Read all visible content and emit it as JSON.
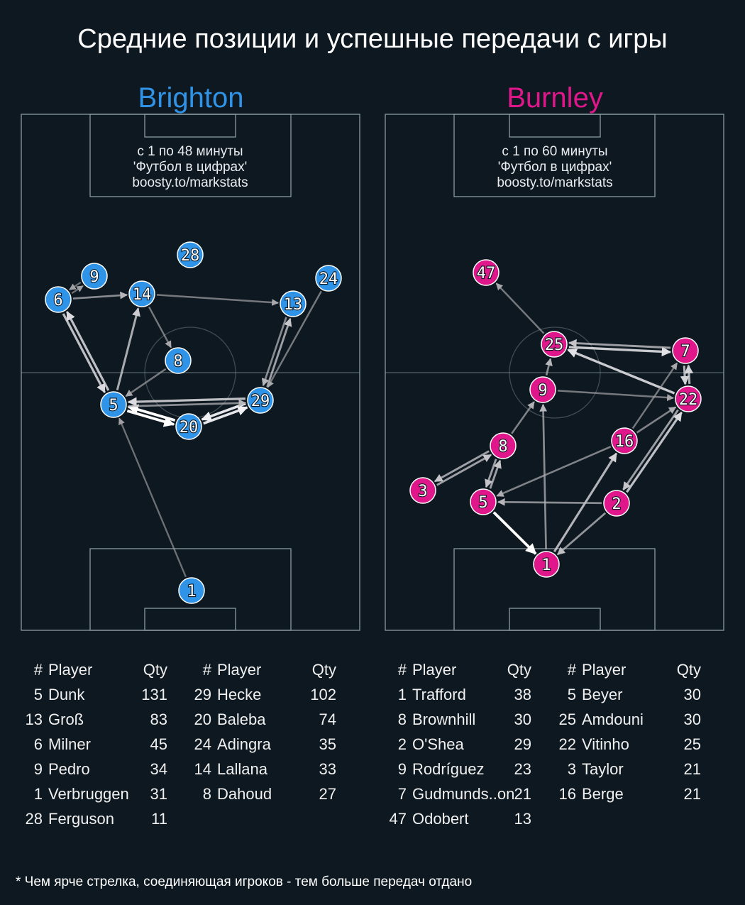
{
  "title": "Средние позиции и успешные передачи с игры",
  "footnote": "* Чем ярче стрелка, соединяющая игроков - тем больше передач отдано",
  "colors": {
    "background": "#0e1820",
    "brighton": "#2f93e8",
    "burnley": "#e0178b",
    "pitch_lines": "#8a9aa2"
  },
  "teams": [
    {
      "name": "Brighton",
      "info": [
        "с 1 по 48 минуты",
        "'Футбол в цифрах'",
        "boosty.to/markstats"
      ],
      "players": [
        "1",
        "5",
        "20",
        "29",
        "8",
        "14",
        "6",
        "9",
        "28",
        "13",
        "24"
      ],
      "passes": [
        {
          "from": "5",
          "to": "20",
          "strength": 1.0
        },
        {
          "from": "20",
          "to": "5",
          "strength": 1.0
        },
        {
          "from": "20",
          "to": "29",
          "strength": 0.9
        },
        {
          "from": "29",
          "to": "20",
          "strength": 0.9
        },
        {
          "from": "29",
          "to": "5",
          "strength": 0.75
        },
        {
          "from": "5",
          "to": "29",
          "strength": 0.5
        },
        {
          "from": "5",
          "to": "6",
          "strength": 0.75
        },
        {
          "from": "6",
          "to": "5",
          "strength": 0.75
        },
        {
          "from": "5",
          "to": "14",
          "strength": 0.65
        },
        {
          "from": "29",
          "to": "13",
          "strength": 0.6
        },
        {
          "from": "13",
          "to": "29",
          "strength": 0.5
        },
        {
          "from": "24",
          "to": "29",
          "strength": 0.4
        },
        {
          "from": "6",
          "to": "14",
          "strength": 0.5
        },
        {
          "from": "14",
          "to": "13",
          "strength": 0.4
        },
        {
          "from": "14",
          "to": "8",
          "strength": 0.4
        },
        {
          "from": "8",
          "to": "5",
          "strength": 0.4
        },
        {
          "from": "6",
          "to": "9",
          "strength": 0.35
        },
        {
          "from": "9",
          "to": "6",
          "strength": 0.35
        },
        {
          "from": "1",
          "to": "5",
          "strength": 0.35
        }
      ],
      "table_columns": [
        {
          "header": {
            "num": "#",
            "player": "Player",
            "qty": "Qty"
          },
          "rows": [
            {
              "num": "5",
              "player": "Dunk",
              "qty": "131"
            },
            {
              "num": "13",
              "player": "Groß",
              "qty": "83"
            },
            {
              "num": "6",
              "player": "Milner",
              "qty": "45"
            },
            {
              "num": "9",
              "player": "Pedro",
              "qty": "34"
            },
            {
              "num": "1",
              "player": "Verbruggen",
              "qty": "31"
            },
            {
              "num": "28",
              "player": "Ferguson",
              "qty": "11"
            }
          ]
        },
        {
          "header": {
            "num": "#",
            "player": "Player",
            "qty": "Qty"
          },
          "rows": [
            {
              "num": "29",
              "player": "Hecke",
              "qty": "102"
            },
            {
              "num": "20",
              "player": "Baleba",
              "qty": "74"
            },
            {
              "num": "24",
              "player": "Adingra",
              "qty": "35"
            },
            {
              "num": "14",
              "player": "Lallana",
              "qty": "33"
            },
            {
              "num": "8",
              "player": "Dahoud",
              "qty": "27"
            }
          ]
        }
      ]
    },
    {
      "name": "Burnley",
      "info": [
        "с 1 по 60 минуты",
        "'Футбол в цифрах'",
        "boosty.to/markstats"
      ],
      "players": [
        "1",
        "5",
        "2",
        "3",
        "8",
        "16",
        "9",
        "22",
        "25",
        "7",
        "47"
      ],
      "passes": [
        {
          "from": "5",
          "to": "1",
          "strength": 1.0
        },
        {
          "from": "22",
          "to": "25",
          "strength": 0.8
        },
        {
          "from": "25",
          "to": "7",
          "strength": 0.8
        },
        {
          "from": "7",
          "to": "25",
          "strength": 0.6
        },
        {
          "from": "2",
          "to": "22",
          "strength": 0.75
        },
        {
          "from": "22",
          "to": "2",
          "strength": 0.6
        },
        {
          "from": "22",
          "to": "7",
          "strength": 0.7
        },
        {
          "from": "7",
          "to": "22",
          "strength": 0.7
        },
        {
          "from": "1",
          "to": "16",
          "strength": 0.7
        },
        {
          "from": "1",
          "to": "9",
          "strength": 0.5
        },
        {
          "from": "2",
          "to": "1",
          "strength": 0.55
        },
        {
          "from": "8",
          "to": "3",
          "strength": 0.6
        },
        {
          "from": "3",
          "to": "8",
          "strength": 0.6
        },
        {
          "from": "8",
          "to": "5",
          "strength": 0.6
        },
        {
          "from": "5",
          "to": "8",
          "strength": 0.6
        },
        {
          "from": "2",
          "to": "5",
          "strength": 0.5
        },
        {
          "from": "16",
          "to": "5",
          "strength": 0.45
        },
        {
          "from": "16",
          "to": "22",
          "strength": 0.45
        },
        {
          "from": "16",
          "to": "7",
          "strength": 0.4
        },
        {
          "from": "9",
          "to": "25",
          "strength": 0.5
        },
        {
          "from": "8",
          "to": "9",
          "strength": 0.45
        },
        {
          "from": "9",
          "to": "22",
          "strength": 0.4
        },
        {
          "from": "25",
          "to": "47",
          "strength": 0.4
        }
      ],
      "table_columns": [
        {
          "header": {
            "num": "#",
            "player": "Player",
            "qty": "Qty"
          },
          "rows": [
            {
              "num": "1",
              "player": "Trafford",
              "qty": "38"
            },
            {
              "num": "8",
              "player": "Brownhill",
              "qty": "30"
            },
            {
              "num": "2",
              "player": "O'Shea",
              "qty": "29"
            },
            {
              "num": "9",
              "player": "Rodríguez",
              "qty": "23"
            },
            {
              "num": "7",
              "player": "Gudmunds..on",
              "qty": "21"
            },
            {
              "num": "47",
              "player": "Odobert",
              "qty": "13"
            }
          ]
        },
        {
          "header": {
            "num": "#",
            "player": "Player",
            "qty": "Qty"
          },
          "rows": [
            {
              "num": "5",
              "player": "Beyer",
              "qty": "30"
            },
            {
              "num": "25",
              "player": "Amdouni",
              "qty": "30"
            },
            {
              "num": "22",
              "player": "Vitinho",
              "qty": "25"
            },
            {
              "num": "3",
              "player": "Taylor",
              "qty": "21"
            },
            {
              "num": "16",
              "player": "Berge",
              "qty": "21"
            }
          ]
        }
      ]
    }
  ]
}
